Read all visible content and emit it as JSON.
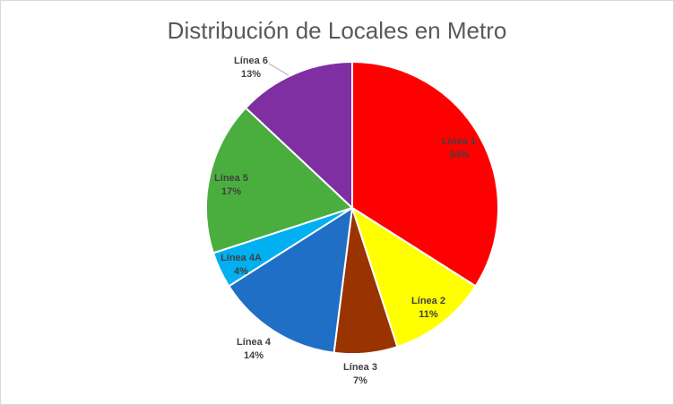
{
  "chart_data": {
    "type": "pie",
    "title": "Distribución de Locales en Metro",
    "categories": [
      "Línea 1",
      "Línea 2",
      "Línea 3",
      "Línea 4",
      "Línea 4A",
      "Línea 5",
      "Línea 6"
    ],
    "values": [
      34,
      11,
      7,
      14,
      4,
      17,
      13
    ],
    "value_labels": [
      "34%",
      "11%",
      "7%",
      "14%",
      "4%",
      "17%",
      "13%"
    ],
    "colors": [
      "#ff0000",
      "#ffff00",
      "#993300",
      "#1f6fc6",
      "#00b0f0",
      "#4aae3f",
      "#7f2fa1"
    ]
  }
}
